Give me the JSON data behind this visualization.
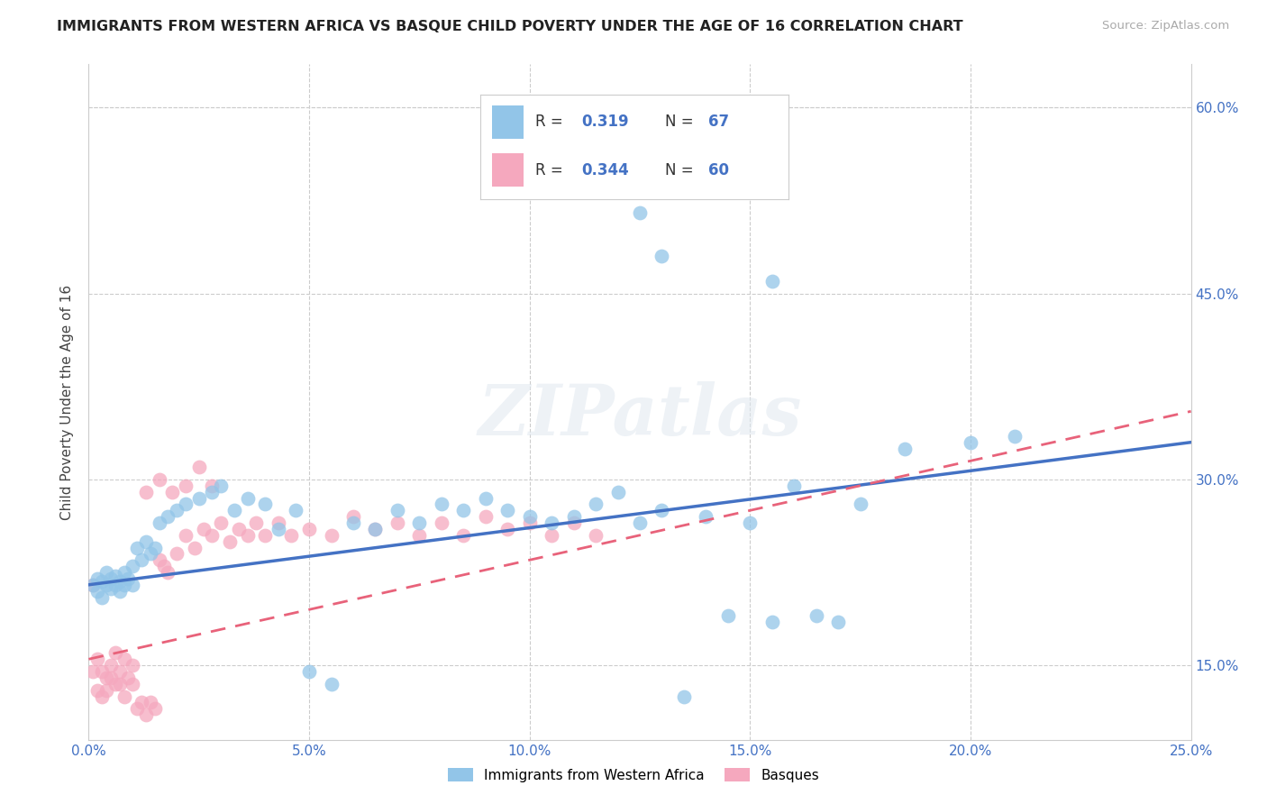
{
  "title": "IMMIGRANTS FROM WESTERN AFRICA VS BASQUE CHILD POVERTY UNDER THE AGE OF 16 CORRELATION CHART",
  "source": "Source: ZipAtlas.com",
  "ylabel": "Child Poverty Under the Age of 16",
  "xlim": [
    0.0,
    0.25
  ],
  "ylim": [
    0.09,
    0.635
  ],
  "xticks": [
    0.0,
    0.05,
    0.1,
    0.15,
    0.2,
    0.25
  ],
  "xtick_labels": [
    "0.0%",
    "5.0%",
    "10.0%",
    "15.0%",
    "20.0%",
    "25.0%"
  ],
  "yticks": [
    0.15,
    0.3,
    0.45,
    0.6
  ],
  "ytick_labels": [
    "15.0%",
    "30.0%",
    "45.0%",
    "60.0%"
  ],
  "blue_color": "#92C5E8",
  "pink_color": "#F5A8BE",
  "blue_line_color": "#4472C4",
  "pink_line_color": "#E8627A",
  "pink_dash_color": "#C0C0C0",
  "r_blue": "0.319",
  "n_blue": "67",
  "r_pink": "0.344",
  "n_pink": "60",
  "legend_label_blue": "Immigrants from Western Africa",
  "legend_label_pink": "Basques",
  "watermark": "ZIPatlas",
  "blue_scatter_x": [
    0.001,
    0.002,
    0.002,
    0.003,
    0.003,
    0.004,
    0.004,
    0.005,
    0.005,
    0.006,
    0.006,
    0.007,
    0.007,
    0.008,
    0.008,
    0.009,
    0.01,
    0.01,
    0.011,
    0.012,
    0.013,
    0.014,
    0.015,
    0.016,
    0.018,
    0.02,
    0.022,
    0.025,
    0.028,
    0.03,
    0.033,
    0.036,
    0.04,
    0.043,
    0.047,
    0.05,
    0.055,
    0.06,
    0.065,
    0.07,
    0.075,
    0.08,
    0.085,
    0.09,
    0.095,
    0.1,
    0.105,
    0.11,
    0.115,
    0.12,
    0.125,
    0.13,
    0.135,
    0.14,
    0.145,
    0.15,
    0.155,
    0.16,
    0.165,
    0.17,
    0.175,
    0.13,
    0.155,
    0.185,
    0.2,
    0.21,
    0.125
  ],
  "blue_scatter_y": [
    0.215,
    0.21,
    0.22,
    0.205,
    0.218,
    0.215,
    0.225,
    0.212,
    0.22,
    0.215,
    0.222,
    0.21,
    0.218,
    0.215,
    0.225,
    0.22,
    0.23,
    0.215,
    0.245,
    0.235,
    0.25,
    0.24,
    0.245,
    0.265,
    0.27,
    0.275,
    0.28,
    0.285,
    0.29,
    0.295,
    0.275,
    0.285,
    0.28,
    0.26,
    0.275,
    0.145,
    0.135,
    0.265,
    0.26,
    0.275,
    0.265,
    0.28,
    0.275,
    0.285,
    0.275,
    0.27,
    0.265,
    0.27,
    0.28,
    0.29,
    0.265,
    0.275,
    0.125,
    0.27,
    0.19,
    0.265,
    0.185,
    0.295,
    0.19,
    0.185,
    0.28,
    0.48,
    0.46,
    0.325,
    0.33,
    0.335,
    0.515
  ],
  "pink_scatter_x": [
    0.001,
    0.001,
    0.002,
    0.002,
    0.003,
    0.003,
    0.004,
    0.004,
    0.005,
    0.005,
    0.006,
    0.006,
    0.007,
    0.007,
    0.008,
    0.008,
    0.009,
    0.01,
    0.01,
    0.011,
    0.012,
    0.013,
    0.014,
    0.015,
    0.016,
    0.017,
    0.018,
    0.02,
    0.022,
    0.024,
    0.026,
    0.028,
    0.03,
    0.032,
    0.034,
    0.036,
    0.038,
    0.04,
    0.043,
    0.046,
    0.05,
    0.055,
    0.06,
    0.065,
    0.07,
    0.075,
    0.08,
    0.085,
    0.09,
    0.095,
    0.1,
    0.105,
    0.11,
    0.115,
    0.013,
    0.016,
    0.019,
    0.022,
    0.025,
    0.028
  ],
  "pink_scatter_y": [
    0.215,
    0.145,
    0.155,
    0.13,
    0.145,
    0.125,
    0.14,
    0.13,
    0.15,
    0.14,
    0.16,
    0.135,
    0.145,
    0.135,
    0.155,
    0.125,
    0.14,
    0.15,
    0.135,
    0.115,
    0.12,
    0.11,
    0.12,
    0.115,
    0.235,
    0.23,
    0.225,
    0.24,
    0.255,
    0.245,
    0.26,
    0.255,
    0.265,
    0.25,
    0.26,
    0.255,
    0.265,
    0.255,
    0.265,
    0.255,
    0.26,
    0.255,
    0.27,
    0.26,
    0.265,
    0.255,
    0.265,
    0.255,
    0.27,
    0.26,
    0.265,
    0.255,
    0.265,
    0.255,
    0.29,
    0.3,
    0.29,
    0.295,
    0.31,
    0.295
  ],
  "blue_line_x0": 0.0,
  "blue_line_x1": 0.25,
  "blue_line_y0": 0.215,
  "blue_line_y1": 0.33,
  "pink_line_y0": 0.155,
  "pink_line_y1": 0.355
}
